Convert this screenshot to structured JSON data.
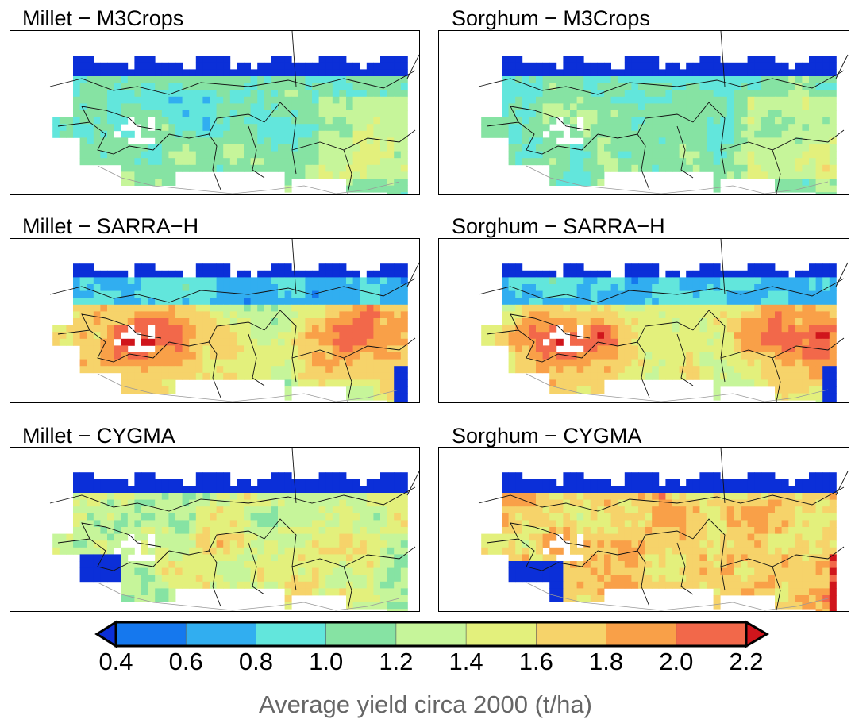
{
  "panels": [
    {
      "title": "Millet − M3Crops",
      "model": "m3crops",
      "crop": "millet"
    },
    {
      "title": "Sorghum − M3Crops",
      "model": "m3crops",
      "crop": "sorghum"
    },
    {
      "title": "Millet − SARRA−H",
      "model": "sarrah",
      "crop": "millet"
    },
    {
      "title": "Sorghum − SARRA−H",
      "model": "sarrah",
      "crop": "sorghum"
    },
    {
      "title": "Millet − CYGMA",
      "model": "cygma",
      "crop": "millet"
    },
    {
      "title": "Sorghum − CYGMA",
      "model": "cygma",
      "crop": "sorghum"
    }
  ],
  "colorbar": {
    "ticks": [
      "0.4",
      "0.6",
      "0.8",
      "1.0",
      "1.2",
      "1.4",
      "1.6",
      "1.8",
      "2.0",
      "2.2"
    ],
    "label": "Average yield circa 2000 (t/ha)",
    "under_color": "#0b2fd8",
    "over_color": "#d0151c",
    "colors": [
      "#1578ee",
      "#31aef0",
      "#62e6dc",
      "#86e3a3",
      "#c6f59a",
      "#e3f07c",
      "#f6d36a",
      "#f9a048",
      "#f2684a"
    ],
    "extend": "both"
  }
}
